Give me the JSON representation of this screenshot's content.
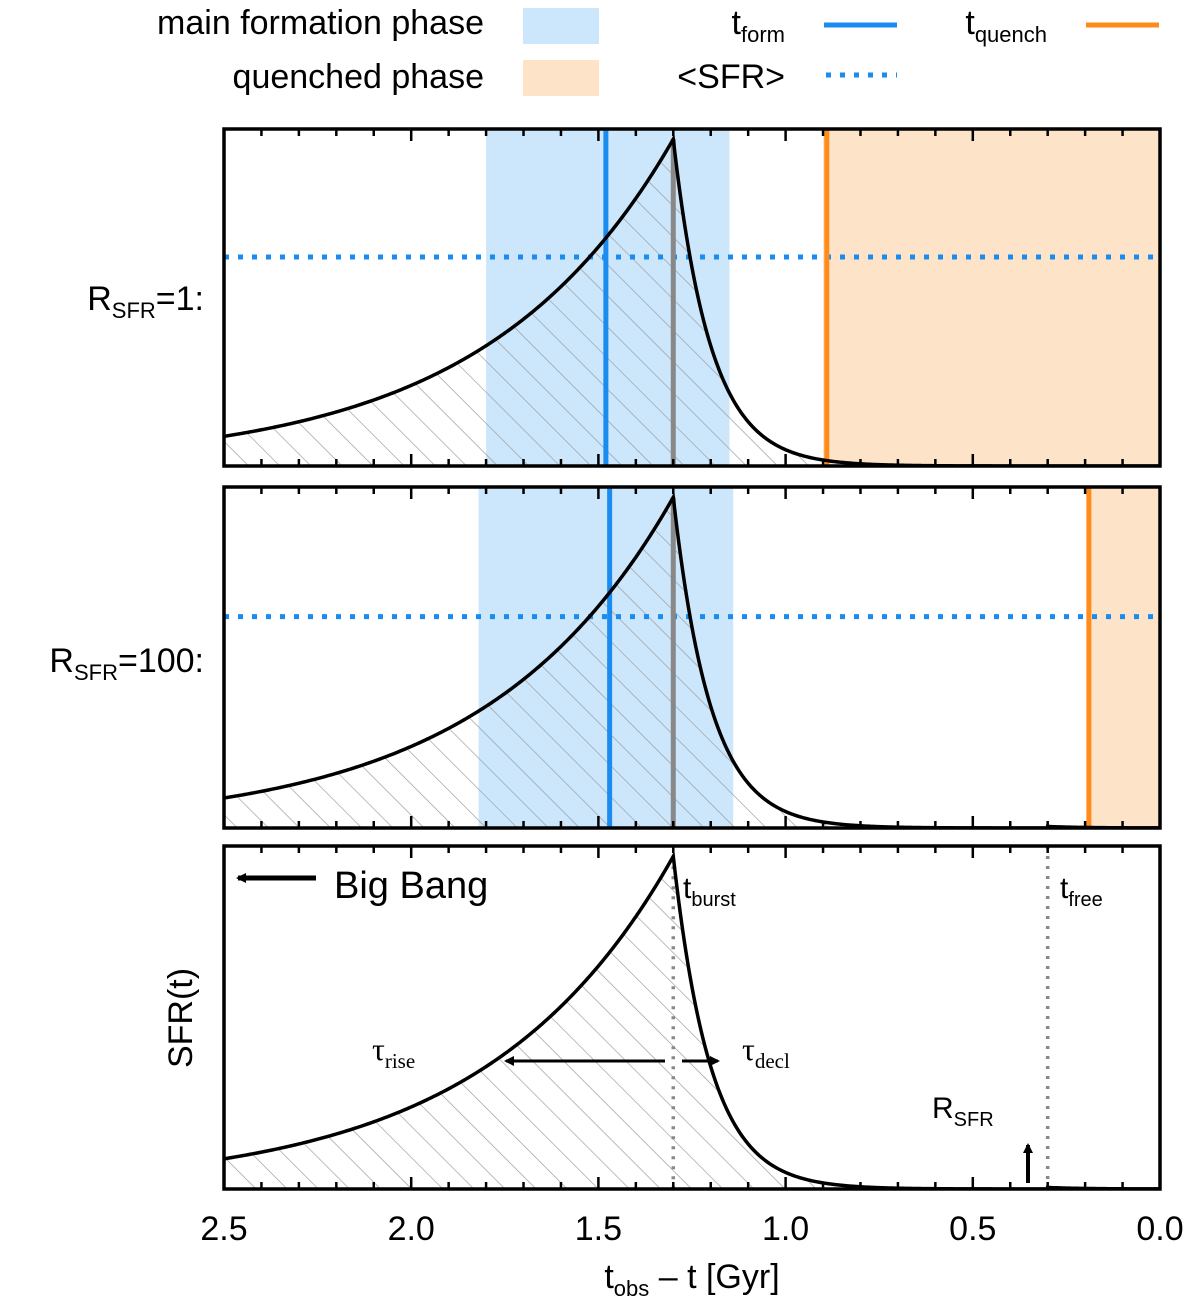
{
  "colors": {
    "main_phase_fill": "#cce6fb",
    "quenched_phase_fill": "#fde4c9",
    "t_form": "#1a8cf0",
    "t_quench": "#ff8c1a",
    "sfr_mean": "#1a8cf0",
    "t_burst_marker": "#888888",
    "curve": "#000000",
    "hatch": "#999999"
  },
  "legend": {
    "main_phase": "main formation phase",
    "quenched_phase": "quenched phase",
    "t_form": {
      "base": "t",
      "sub": "form"
    },
    "t_quench": {
      "base": "t",
      "sub": "quench"
    },
    "sfr_mean": "<SFR>"
  },
  "chart_data": [
    {
      "type": "area",
      "panel": "top",
      "row_label": {
        "base": "R",
        "sub": "SFR",
        "suffix": "=1:"
      },
      "r_sfr": 1,
      "t_burst": 1.3,
      "tau_rise": 0.5,
      "tau_decl": 0.1,
      "t_free": null,
      "main_phase": [
        1.8,
        1.15
      ],
      "quenched_phase": [
        0.9,
        0.0
      ],
      "t_form": 1.48,
      "t_quench": 0.89,
      "sfr_mean_frac": 0.62,
      "xlim": [
        2.5,
        0.0
      ]
    },
    {
      "type": "area",
      "panel": "middle",
      "row_label": {
        "base": "R",
        "sub": "SFR",
        "suffix": "=100:"
      },
      "r_sfr": 100,
      "t_burst": 1.3,
      "tau_rise": 0.5,
      "tau_decl": 0.1,
      "t_free": 0.3,
      "main_phase": [
        1.82,
        1.14
      ],
      "quenched_phase": [
        0.19,
        0.0
      ],
      "t_form": 1.47,
      "t_quench": 0.19,
      "sfr_mean_frac": 0.62,
      "xlim": [
        2.5,
        0.0
      ]
    },
    {
      "type": "area",
      "panel": "bottom",
      "ylabel": "SFR(t)",
      "xlabel": {
        "base": "t",
        "sub": "obs",
        "suffix": " – t [Gyr]"
      },
      "r_sfr": 100,
      "t_burst": 1.3,
      "tau_rise": 0.5,
      "tau_decl": 0.1,
      "t_free": 0.3,
      "xlim": [
        2.5,
        0.0
      ],
      "xticks": [
        2.5,
        2.0,
        1.5,
        1.0,
        0.5,
        0.0
      ],
      "xtick_labels": [
        "2.5",
        "2.0",
        "1.5",
        "1.0",
        "0.5",
        "0.0"
      ],
      "annotations": {
        "big_bang": "Big Bang",
        "t_burst": {
          "base": "t",
          "sub": "burst"
        },
        "t_free": {
          "base": "t",
          "sub": "free"
        },
        "tau_rise": {
          "base": "τ",
          "sub": "rise"
        },
        "tau_decl": {
          "base": "τ",
          "sub": "decl"
        },
        "r_sfr": {
          "base": "R",
          "sub": "SFR"
        }
      }
    }
  ]
}
